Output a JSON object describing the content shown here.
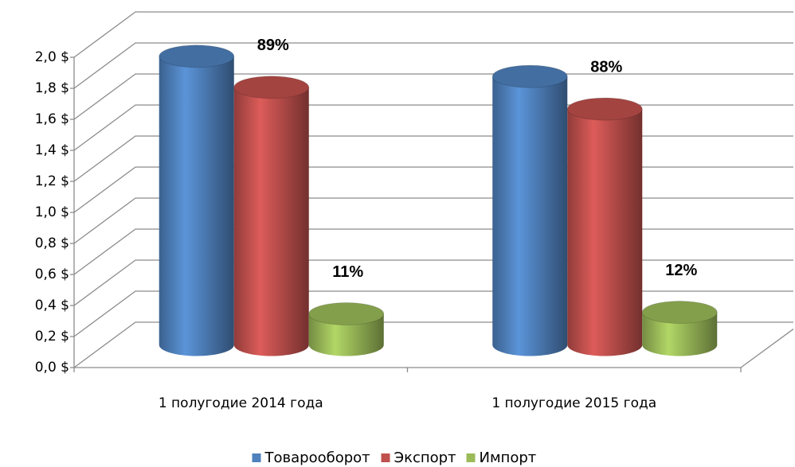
{
  "chart_data": {
    "type": "bar3d",
    "categories": [
      "1 полугодие 2014 года",
      "1 полугодие 2015 года"
    ],
    "series": [
      {
        "name": "Товарооборот",
        "color": "#4f81bd",
        "values": [
          1.86,
          1.73
        ]
      },
      {
        "name": "Экспорт",
        "color": "#c0504d",
        "values": [
          1.66,
          1.52
        ]
      },
      {
        "name": "Импорт",
        "color": "#9bbb59",
        "values": [
          0.2,
          0.21
        ]
      }
    ],
    "annotations": [
      "89%",
      "11%",
      "88%",
      "12%"
    ],
    "ylim": [
      0,
      2
    ],
    "yticks": [
      {
        "value": 0,
        "label": "0,0 $"
      },
      {
        "value": 0.2,
        "label": "0,2 $"
      },
      {
        "value": 0.4,
        "label": "0,4 $"
      },
      {
        "value": 0.6,
        "label": "0,6 $"
      },
      {
        "value": 0.8,
        "label": "0,8 $"
      },
      {
        "value": 1,
        "label": "1,0 $"
      },
      {
        "value": 1.2,
        "label": "1,2 $"
      },
      {
        "value": 1.4,
        "label": "1,4 $"
      },
      {
        "value": 1.6,
        "label": "1,6 $"
      },
      {
        "value": 1.8,
        "label": "1,8 $"
      },
      {
        "value": 2,
        "label": "2,0 $"
      }
    ],
    "grid": true,
    "legend": "bottom"
  }
}
